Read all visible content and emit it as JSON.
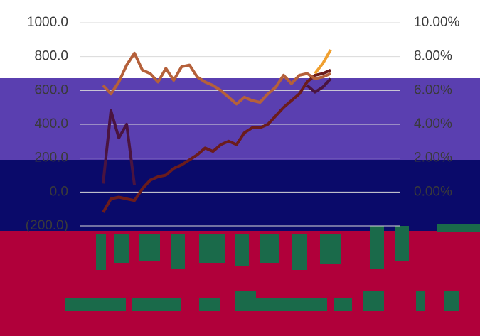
{
  "chart_data": {
    "type": "line",
    "categories": [
      null,
      null,
      null,
      null,
      null,
      null,
      null,
      null,
      null,
      null,
      null,
      null,
      null,
      null,
      null,
      null,
      null,
      null,
      null,
      null,
      null,
      null,
      null,
      null,
      null,
      null,
      null,
      null,
      null,
      null
    ],
    "ylim": [
      -200,
      1000
    ],
    "yticks": [
      {
        "value": -200,
        "label": "(200.0)"
      },
      {
        "value": 0,
        "label": "0.0"
      },
      {
        "value": 200,
        "label": "200.0"
      },
      {
        "value": 400,
        "label": "400.0"
      },
      {
        "value": 600,
        "label": "600.0"
      },
      {
        "value": 800,
        "label": "800.0"
      },
      {
        "value": 1000,
        "label": "1000.0"
      }
    ],
    "y2lim": [
      -2,
      10
    ],
    "y2ticks": [
      {
        "value": 0,
        "label": "0.00%"
      },
      {
        "value": 2,
        "label": "2.00%"
      },
      {
        "value": 4,
        "label": "4.00%"
      },
      {
        "value": 6,
        "label": "6.00%"
      },
      {
        "value": 8,
        "label": "8.00%"
      },
      {
        "value": 10,
        "label": "10.00%"
      }
    ],
    "grid": true,
    "series": [
      {
        "color": "#6b1c1c",
        "values": [
          -120,
          -40,
          -30,
          -40,
          -50,
          20,
          70,
          90,
          100,
          140,
          160,
          190,
          220,
          260,
          240,
          280,
          300,
          280,
          350,
          380,
          380,
          400,
          450,
          500,
          540,
          580,
          650,
          690,
          700,
          720
        ]
      },
      {
        "color": "#b5603a",
        "axis": "y2",
        "values": [
          6.3,
          5.8,
          6.5,
          7.5,
          8.2,
          7.2,
          7.0,
          6.5,
          7.3,
          6.6,
          7.4,
          7.5,
          6.8,
          6.5,
          6.3,
          6.0,
          5.6,
          5.2,
          5.6,
          5.4,
          5.3,
          5.8,
          6.2,
          6.9,
          6.4,
          6.9,
          7.0,
          6.7,
          6.8,
          7.0
        ]
      },
      {
        "color": "#f0a030",
        "axis": "y2",
        "values": [
          null,
          null,
          null,
          null,
          null,
          null,
          null,
          null,
          null,
          null,
          null,
          null,
          null,
          null,
          null,
          null,
          null,
          null,
          null,
          null,
          null,
          null,
          null,
          null,
          null,
          null,
          null,
          7.0,
          7.6,
          8.4
        ]
      },
      {
        "color": "#4a1440",
        "axis": "y2",
        "values": [
          0.5,
          4.8,
          3.2,
          4.0,
          0.4,
          null,
          null,
          null,
          null,
          null,
          null,
          null,
          null,
          null,
          null,
          null,
          null,
          null,
          null,
          null,
          null,
          null,
          null,
          null,
          null,
          null,
          6.3,
          5.9,
          6.2,
          6.7
        ]
      }
    ]
  }
}
